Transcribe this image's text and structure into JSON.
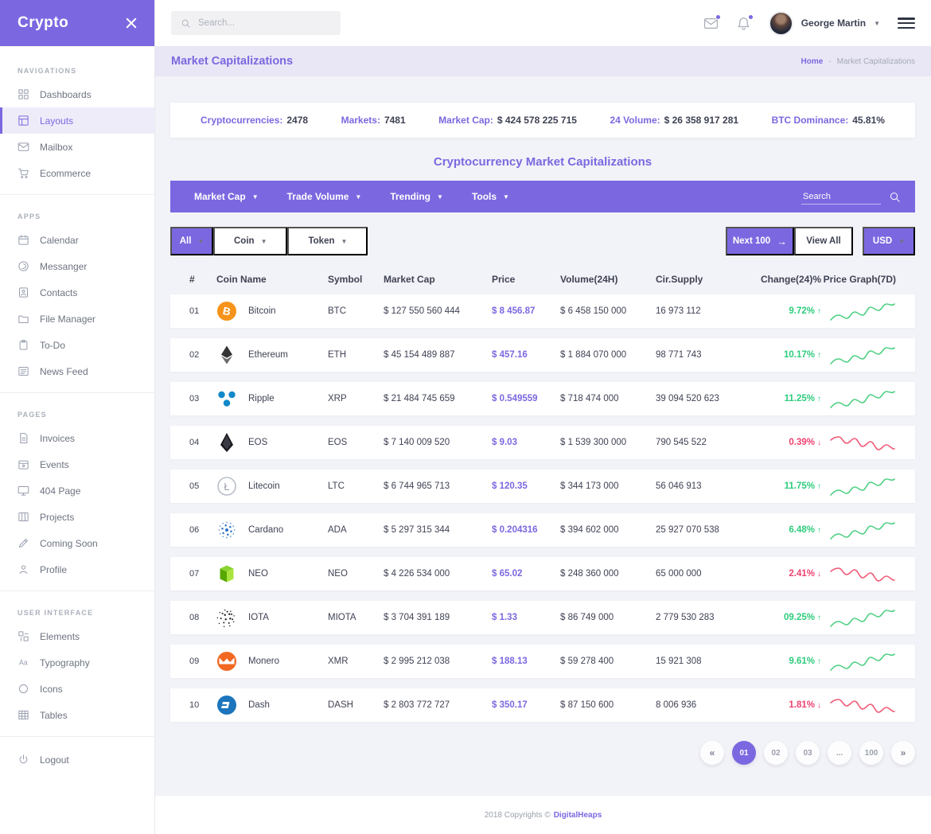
{
  "app": {
    "brand": "Crypto"
  },
  "colors": {
    "purple": "#7b68e0",
    "lavender": "#e9e7f6",
    "bg": "#f2f3f8",
    "green": "#2ecc7d",
    "red": "#f1416f",
    "spark_green": "#4fd084",
    "spark_red": "#f05b77"
  },
  "topbar": {
    "search_placeholder": "Search...",
    "user_name": "George Martin",
    "icons": [
      "mail-icon",
      "bell-icon",
      "avatar",
      "hamburger-icon"
    ]
  },
  "page": {
    "title": "Market Capitalizations",
    "breadcrumb_home": "Home",
    "breadcrumb_sep": "-",
    "breadcrumb_current": "Market Capitalizations"
  },
  "sidebar": {
    "sections": [
      {
        "label": "NAVIGATIONS",
        "items": [
          {
            "label": "Dashboards",
            "icon": "grid",
            "active": false
          },
          {
            "label": "Layouts",
            "icon": "layout",
            "active": true
          },
          {
            "label": "Mailbox",
            "icon": "mail",
            "active": false
          },
          {
            "label": "Ecommerce",
            "icon": "cart",
            "active": false
          }
        ]
      },
      {
        "label": "APPS",
        "items": [
          {
            "label": "Calendar",
            "icon": "calendar",
            "active": false
          },
          {
            "label": "Messanger",
            "icon": "chat",
            "active": false
          },
          {
            "label": "Contacts",
            "icon": "contacts",
            "active": false
          },
          {
            "label": "File Manager",
            "icon": "folder",
            "active": false
          },
          {
            "label": "To-Do",
            "icon": "clipboard",
            "active": false
          },
          {
            "label": "News Feed",
            "icon": "news",
            "active": false
          }
        ]
      },
      {
        "label": "PAGES",
        "items": [
          {
            "label": "Invoices",
            "icon": "invoice",
            "active": false
          },
          {
            "label": "Events",
            "icon": "event",
            "active": false
          },
          {
            "label": "404 Page",
            "icon": "monitor",
            "active": false
          },
          {
            "label": "Projects",
            "icon": "projects",
            "active": false
          },
          {
            "label": "Coming Soon",
            "icon": "pencil",
            "active": false
          },
          {
            "label": "Profile",
            "icon": "user",
            "active": false
          }
        ]
      },
      {
        "label": "USER INTERFACE",
        "items": [
          {
            "label": "Elements",
            "icon": "elements",
            "active": false
          },
          {
            "label": "Typography",
            "icon": "typography",
            "active": false
          },
          {
            "label": "Icons",
            "icon": "circle",
            "active": false
          },
          {
            "label": "Tables",
            "icon": "table",
            "active": false
          }
        ]
      }
    ],
    "logout": {
      "label": "Logout",
      "icon": "power"
    }
  },
  "stats": [
    {
      "label": "Cryptocurrencies:",
      "value": "2478"
    },
    {
      "label": "Markets:",
      "value": "7481"
    },
    {
      "label": "Market Cap:",
      "value": "$ 424 578 225 715"
    },
    {
      "label": "24 Volume:",
      "value": "$ 26 358 917 281"
    },
    {
      "label": "BTC Dominance:",
      "value": "45.81%"
    }
  ],
  "section_heading": "Cryptocurrency Market Capitalizations",
  "toolbar": {
    "menus": [
      "Market Cap",
      "Trade Volume",
      "Trending",
      "Tools"
    ],
    "search_placeholder": "Search"
  },
  "filters": {
    "all_label": "All",
    "coin_label": "Coin",
    "token_label": "Token",
    "next_label": "Next 100",
    "view_all_label": "View All",
    "currency_label": "USD"
  },
  "table": {
    "headers": [
      "#",
      "Coin Name",
      "Symbol",
      "Market Cap",
      "Price",
      "Volume(24H)",
      "Cir.Supply",
      "Change(24)%",
      "Price Graph(7D)"
    ],
    "rows": [
      {
        "rank": "01",
        "name": "Bitcoin",
        "icon": "bitcoin",
        "symbol": "BTC",
        "market_cap": "$ 127 550 560 444",
        "price": "$ 8 456.87",
        "volume": "$ 6 458 150 000",
        "supply": "16 973 112",
        "change": "9.72%",
        "direction": "up"
      },
      {
        "rank": "02",
        "name": "Ethereum",
        "icon": "ethereum",
        "symbol": "ETH",
        "market_cap": "$ 45 154 489 887",
        "price": "$ 457.16",
        "volume": "$ 1 884 070 000",
        "supply": "98 771 743",
        "change": "10.17%",
        "direction": "up"
      },
      {
        "rank": "03",
        "name": "Ripple",
        "icon": "ripple",
        "symbol": "XRP",
        "market_cap": "$ 21 484 745 659",
        "price": "$ 0.549559",
        "volume": "$ 718 474 000",
        "supply": "39 094 520 623",
        "change": "11.25%",
        "direction": "up"
      },
      {
        "rank": "04",
        "name": "EOS",
        "icon": "eos",
        "symbol": "EOS",
        "market_cap": "$ 7 140 009 520",
        "price": "$ 9.03",
        "volume": "$ 1 539 300 000",
        "supply": "790 545 522",
        "change": "0.39%",
        "direction": "down"
      },
      {
        "rank": "05",
        "name": "Litecoin",
        "icon": "litecoin",
        "symbol": "LTC",
        "market_cap": "$ 6 744 965 713",
        "price": "$ 120.35",
        "volume": "$ 344 173 000",
        "supply": "56 046 913",
        "change": "11.75%",
        "direction": "up"
      },
      {
        "rank": "06",
        "name": "Cardano",
        "icon": "cardano",
        "symbol": "ADA",
        "market_cap": "$ 5 297 315 344",
        "price": "$ 0.204316",
        "volume": "$ 394 602 000",
        "supply": "25 927 070 538",
        "change": "6.48%",
        "direction": "up"
      },
      {
        "rank": "07",
        "name": "NEO",
        "icon": "neo",
        "symbol": "NEO",
        "market_cap": "$ 4 226 534 000",
        "price": "$ 65.02",
        "volume": "$ 248 360 000",
        "supply": "65 000 000",
        "change": "2.41%",
        "direction": "down"
      },
      {
        "rank": "08",
        "name": "IOTA",
        "icon": "iota",
        "symbol": "MIOTA",
        "market_cap": "$ 3 704 391 189",
        "price": "$ 1.33",
        "volume": "$ 86 749 000",
        "supply": "2 779 530 283",
        "change": "09.25%",
        "direction": "up"
      },
      {
        "rank": "09",
        "name": "Monero",
        "icon": "monero",
        "symbol": "XMR",
        "market_cap": "$ 2 995 212 038",
        "price": "$ 188.13",
        "volume": "$ 59 278 400",
        "supply": "15 921 308",
        "change": "9.61%",
        "direction": "up"
      },
      {
        "rank": "10",
        "name": "Dash",
        "icon": "dash",
        "symbol": "DASH",
        "market_cap": "$ 2 803 772 727",
        "price": "$ 350.17",
        "volume": "$ 87 150 600",
        "supply": "8 006 936",
        "change": "1.81%",
        "direction": "down"
      }
    ]
  },
  "pagination": {
    "prev": "«",
    "next": "»",
    "pages": [
      "01",
      "02",
      "03",
      "...",
      "100"
    ],
    "active": "01"
  },
  "footer": {
    "text": "2018 Copyrights ©",
    "brand": "DigitalHeaps"
  }
}
